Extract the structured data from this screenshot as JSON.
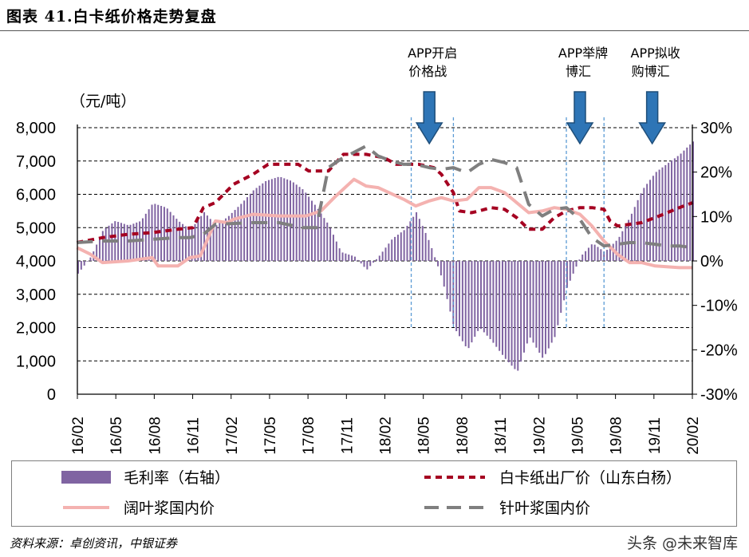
{
  "title": "图表 41.白卡纸价格走势复盘",
  "source": "资料来源：卓创资讯，中银证券",
  "watermark": "头条 @未来智库",
  "chart_data": {
    "type": "bar+line",
    "unit_left": "（元/吨）",
    "y_left": {
      "min": 0,
      "max": 8000,
      "ticks": [
        "0",
        "1,000",
        "2,000",
        "3,000",
        "4,000",
        "5,000",
        "6,000",
        "7,000",
        "8,000"
      ]
    },
    "y_right": {
      "min": -30,
      "max": 30,
      "ticks": [
        "-30%",
        "-20%",
        "-10%",
        "0%",
        "10%",
        "20%",
        "30%"
      ]
    },
    "x_ticks": [
      "16/02",
      "16/05",
      "16/08",
      "16/11",
      "17/02",
      "17/05",
      "17/08",
      "17/11",
      "18/02",
      "18/05",
      "18/08",
      "18/11",
      "19/02",
      "19/05",
      "19/08",
      "19/11",
      "20/02"
    ],
    "x_start": 2016.0833,
    "x_end": 2020.1667,
    "annotations": [
      {
        "label_line1": "APP开启",
        "label_line2": "价格战",
        "x": 2018.42,
        "band": [
          2018.3,
          2018.58
        ]
      },
      {
        "label_line1": "APP举牌",
        "label_line2": "博汇",
        "x": 2019.42,
        "band": [
          2019.33,
          2019.58
        ]
      },
      {
        "label_line1": "APP拟收",
        "label_line2": "购博汇",
        "x": 2019.9,
        "band": null
      }
    ],
    "series": [
      {
        "name": "白卡纸出厂价（山东白杨）",
        "axis": "left",
        "style": "dashed",
        "color": "#a50021",
        "points": [
          [
            2016.08,
            4550
          ],
          [
            2016.25,
            4700
          ],
          [
            2016.42,
            4800
          ],
          [
            2016.58,
            4850
          ],
          [
            2016.75,
            4950
          ],
          [
            2016.85,
            5000
          ],
          [
            2016.92,
            5600
          ],
          [
            2017.0,
            5750
          ],
          [
            2017.12,
            6300
          ],
          [
            2017.25,
            6600
          ],
          [
            2017.35,
            6900
          ],
          [
            2017.55,
            6900
          ],
          [
            2017.62,
            6700
          ],
          [
            2017.75,
            6700
          ],
          [
            2017.85,
            7200
          ],
          [
            2018.0,
            7200
          ],
          [
            2018.12,
            7100
          ],
          [
            2018.2,
            6900
          ],
          [
            2018.35,
            6900
          ],
          [
            2018.45,
            6800
          ],
          [
            2018.5,
            6600
          ],
          [
            2018.58,
            6050
          ],
          [
            2018.62,
            5500
          ],
          [
            2018.7,
            5450
          ],
          [
            2018.75,
            5500
          ],
          [
            2018.83,
            5600
          ],
          [
            2018.92,
            5550
          ],
          [
            2019.0,
            5300
          ],
          [
            2019.08,
            4950
          ],
          [
            2019.17,
            4950
          ],
          [
            2019.25,
            5300
          ],
          [
            2019.33,
            5500
          ],
          [
            2019.42,
            5600
          ],
          [
            2019.5,
            5600
          ],
          [
            2019.58,
            5550
          ],
          [
            2019.62,
            5200
          ],
          [
            2019.67,
            5050
          ],
          [
            2019.75,
            5100
          ],
          [
            2019.83,
            5150
          ],
          [
            2019.92,
            5300
          ],
          [
            2020.0,
            5450
          ],
          [
            2020.08,
            5600
          ],
          [
            2020.17,
            5750
          ]
        ]
      },
      {
        "name": "阔叶浆国内价",
        "axis": "left",
        "style": "solid",
        "color": "#f4b2b0",
        "points": [
          [
            2016.08,
            4400
          ],
          [
            2016.17,
            4200
          ],
          [
            2016.25,
            3950
          ],
          [
            2016.42,
            4000
          ],
          [
            2016.58,
            4100
          ],
          [
            2016.62,
            3850
          ],
          [
            2016.75,
            3850
          ],
          [
            2016.83,
            4100
          ],
          [
            2016.9,
            4150
          ],
          [
            2017.0,
            5200
          ],
          [
            2017.08,
            5150
          ],
          [
            2017.12,
            5250
          ],
          [
            2017.25,
            5400
          ],
          [
            2017.42,
            5350
          ],
          [
            2017.6,
            5350
          ],
          [
            2017.7,
            5500
          ],
          [
            2017.8,
            5950
          ],
          [
            2017.92,
            6450
          ],
          [
            2018.0,
            6250
          ],
          [
            2018.08,
            6200
          ],
          [
            2018.25,
            5850
          ],
          [
            2018.33,
            5650
          ],
          [
            2018.42,
            5800
          ],
          [
            2018.5,
            5900
          ],
          [
            2018.58,
            5800
          ],
          [
            2018.67,
            5850
          ],
          [
            2018.75,
            6200
          ],
          [
            2018.83,
            6200
          ],
          [
            2018.92,
            6050
          ],
          [
            2019.0,
            5750
          ],
          [
            2019.08,
            5450
          ],
          [
            2019.17,
            5500
          ],
          [
            2019.25,
            5600
          ],
          [
            2019.33,
            5550
          ],
          [
            2019.42,
            5400
          ],
          [
            2019.5,
            5050
          ],
          [
            2019.58,
            4600
          ],
          [
            2019.67,
            4200
          ],
          [
            2019.75,
            3950
          ],
          [
            2019.83,
            3950
          ],
          [
            2019.92,
            3850
          ],
          [
            2020.08,
            3800
          ],
          [
            2020.17,
            3800
          ]
        ]
      },
      {
        "name": "针叶浆国内价",
        "axis": "left",
        "style": "longdash",
        "color": "#7f7f7f",
        "points": [
          [
            2016.08,
            4550
          ],
          [
            2016.25,
            4600
          ],
          [
            2016.42,
            4600
          ],
          [
            2016.58,
            4650
          ],
          [
            2016.75,
            4700
          ],
          [
            2016.83,
            4700
          ],
          [
            2016.92,
            4800
          ],
          [
            2017.0,
            5100
          ],
          [
            2017.25,
            5150
          ],
          [
            2017.42,
            5150
          ],
          [
            2017.58,
            5000
          ],
          [
            2017.67,
            5000
          ],
          [
            2017.75,
            6800
          ],
          [
            2017.83,
            7050
          ],
          [
            2018.0,
            7450
          ],
          [
            2018.08,
            7150
          ],
          [
            2018.17,
            7000
          ],
          [
            2018.25,
            6900
          ],
          [
            2018.33,
            6900
          ],
          [
            2018.42,
            6800
          ],
          [
            2018.5,
            6750
          ],
          [
            2018.58,
            6800
          ],
          [
            2018.67,
            6650
          ],
          [
            2018.75,
            6900
          ],
          [
            2018.83,
            7050
          ],
          [
            2018.92,
            6950
          ],
          [
            2019.0,
            6800
          ],
          [
            2019.08,
            5700
          ],
          [
            2019.17,
            5350
          ],
          [
            2019.25,
            5550
          ],
          [
            2019.33,
            5600
          ],
          [
            2019.42,
            5250
          ],
          [
            2019.5,
            4700
          ],
          [
            2019.58,
            4450
          ],
          [
            2019.67,
            4500
          ],
          [
            2019.75,
            4550
          ],
          [
            2019.83,
            4550
          ],
          [
            2019.92,
            4500
          ],
          [
            2020.0,
            4450
          ],
          [
            2020.08,
            4450
          ],
          [
            2020.17,
            4400
          ]
        ]
      },
      {
        "name": "毛利率（右轴）",
        "axis": "right",
        "style": "bar",
        "color": "#8064a2",
        "points": [
          [
            2016.08,
            -3
          ],
          [
            2016.17,
            1
          ],
          [
            2016.25,
            7
          ],
          [
            2016.33,
            9
          ],
          [
            2016.42,
            8
          ],
          [
            2016.5,
            9
          ],
          [
            2016.58,
            13
          ],
          [
            2016.67,
            12
          ],
          [
            2016.75,
            9
          ],
          [
            2016.83,
            7
          ],
          [
            2016.92,
            11
          ],
          [
            2017.0,
            8
          ],
          [
            2017.08,
            10
          ],
          [
            2017.17,
            13
          ],
          [
            2017.25,
            16
          ],
          [
            2017.33,
            18
          ],
          [
            2017.42,
            19
          ],
          [
            2017.5,
            18
          ],
          [
            2017.58,
            16
          ],
          [
            2017.67,
            12
          ],
          [
            2017.75,
            8
          ],
          [
            2017.83,
            2
          ],
          [
            2017.92,
            1
          ],
          [
            2018.0,
            -2
          ],
          [
            2018.08,
            1
          ],
          [
            2018.17,
            5
          ],
          [
            2018.25,
            7
          ],
          [
            2018.33,
            11
          ],
          [
            2018.42,
            4
          ],
          [
            2018.5,
            -4
          ],
          [
            2018.58,
            -15
          ],
          [
            2018.67,
            -20
          ],
          [
            2018.75,
            -15
          ],
          [
            2018.83,
            -18
          ],
          [
            2018.92,
            -22
          ],
          [
            2019.0,
            -25
          ],
          [
            2019.08,
            -17
          ],
          [
            2019.17,
            -22
          ],
          [
            2019.25,
            -17
          ],
          [
            2019.33,
            -6
          ],
          [
            2019.42,
            1
          ],
          [
            2019.5,
            4
          ],
          [
            2019.58,
            2
          ],
          [
            2019.67,
            5
          ],
          [
            2019.75,
            10
          ],
          [
            2019.83,
            16
          ],
          [
            2019.92,
            20
          ],
          [
            2020.0,
            22
          ],
          [
            2020.08,
            24
          ],
          [
            2020.17,
            27
          ]
        ]
      }
    ]
  },
  "legend": [
    {
      "label": "毛利率（右轴）",
      "type": "bar",
      "color": "#8064a2"
    },
    {
      "label": "白卡纸出厂价（山东白杨）",
      "type": "dashed",
      "color": "#a50021"
    },
    {
      "label": "阔叶浆国内价",
      "type": "solid",
      "color": "#f4b2b0"
    },
    {
      "label": "针叶浆国内价",
      "type": "longdash",
      "color": "#7f7f7f"
    }
  ]
}
